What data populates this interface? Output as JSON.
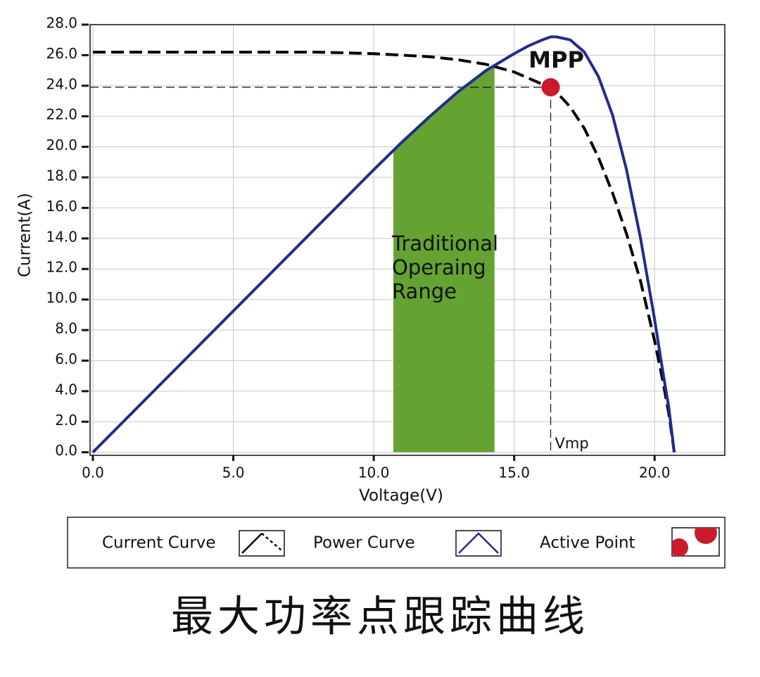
{
  "chart_data": {
    "type": "line",
    "xlabel": "Voltage(V)",
    "ylabel": "Current(A)",
    "x": [
      0,
      2,
      4,
      6,
      8,
      10,
      11,
      12,
      13,
      14,
      15,
      15.5,
      16,
      16.3,
      16.5,
      17,
      17.5,
      18,
      18.5,
      19,
      19.5,
      20,
      20.3,
      20.5,
      20.7
    ],
    "series": [
      {
        "name": "Current Curve",
        "color": "#000000",
        "dashed": true,
        "values": [
          26.2,
          26.2,
          26.2,
          26.2,
          26.2,
          26.1,
          26.0,
          25.9,
          25.7,
          25.4,
          24.9,
          24.5,
          24.1,
          23.9,
          23.6,
          22.6,
          21.2,
          19.3,
          17.0,
          14.3,
          11.2,
          7.3,
          4.6,
          2.6,
          0
        ]
      },
      {
        "name": "Power Curve",
        "color": "#232a8e",
        "dashed": false,
        "values": [
          0,
          3.7,
          7.4,
          11.1,
          14.8,
          18.5,
          20.3,
          22.0,
          23.6,
          25.0,
          26.1,
          26.6,
          27.0,
          27.2,
          27.2,
          27.0,
          26.2,
          24.6,
          22.1,
          18.5,
          14.0,
          8.7,
          5.2,
          3.0,
          0
        ]
      }
    ],
    "xlim": [
      -0.1,
      22.5
    ],
    "ylim": [
      -0.2,
      28
    ],
    "xticks": [
      {
        "value": 0,
        "label": "0.0"
      },
      {
        "value": 5,
        "label": "5.0"
      },
      {
        "value": 10,
        "label": "10.0"
      },
      {
        "value": 15,
        "label": "15.0"
      },
      {
        "value": 20,
        "label": "20.0"
      }
    ],
    "yticks": [
      {
        "value": 0,
        "label": "0.0"
      },
      {
        "value": 2,
        "label": "2.0"
      },
      {
        "value": 4,
        "label": "4.0"
      },
      {
        "value": 6,
        "label": "6.0"
      },
      {
        "value": 8,
        "label": "8.0"
      },
      {
        "value": 10,
        "label": "10.0"
      },
      {
        "value": 12,
        "label": "12.0"
      },
      {
        "value": 14,
        "label": "14.0"
      },
      {
        "value": 16,
        "label": "16.0"
      },
      {
        "value": 18,
        "label": "18.0"
      },
      {
        "value": 20,
        "label": "20.0"
      },
      {
        "value": 22,
        "label": "22.0"
      },
      {
        "value": 24,
        "label": "24.0"
      },
      {
        "value": 26,
        "label": "26.0"
      },
      {
        "value": 28,
        "label": "28.0"
      }
    ],
    "grid": true,
    "shaded_region": {
      "label": [
        "Traditional",
        "Operaing",
        "Range"
      ],
      "x_range": [
        10.7,
        14.3
      ],
      "color": "#64a232"
    },
    "active_point": {
      "name": "Active Point",
      "label": "MPP",
      "x": 16.3,
      "y": 23.9,
      "color": "#cc1a2d",
      "x_label": "Vmp"
    }
  },
  "caption": "最大功率点跟踪曲线"
}
